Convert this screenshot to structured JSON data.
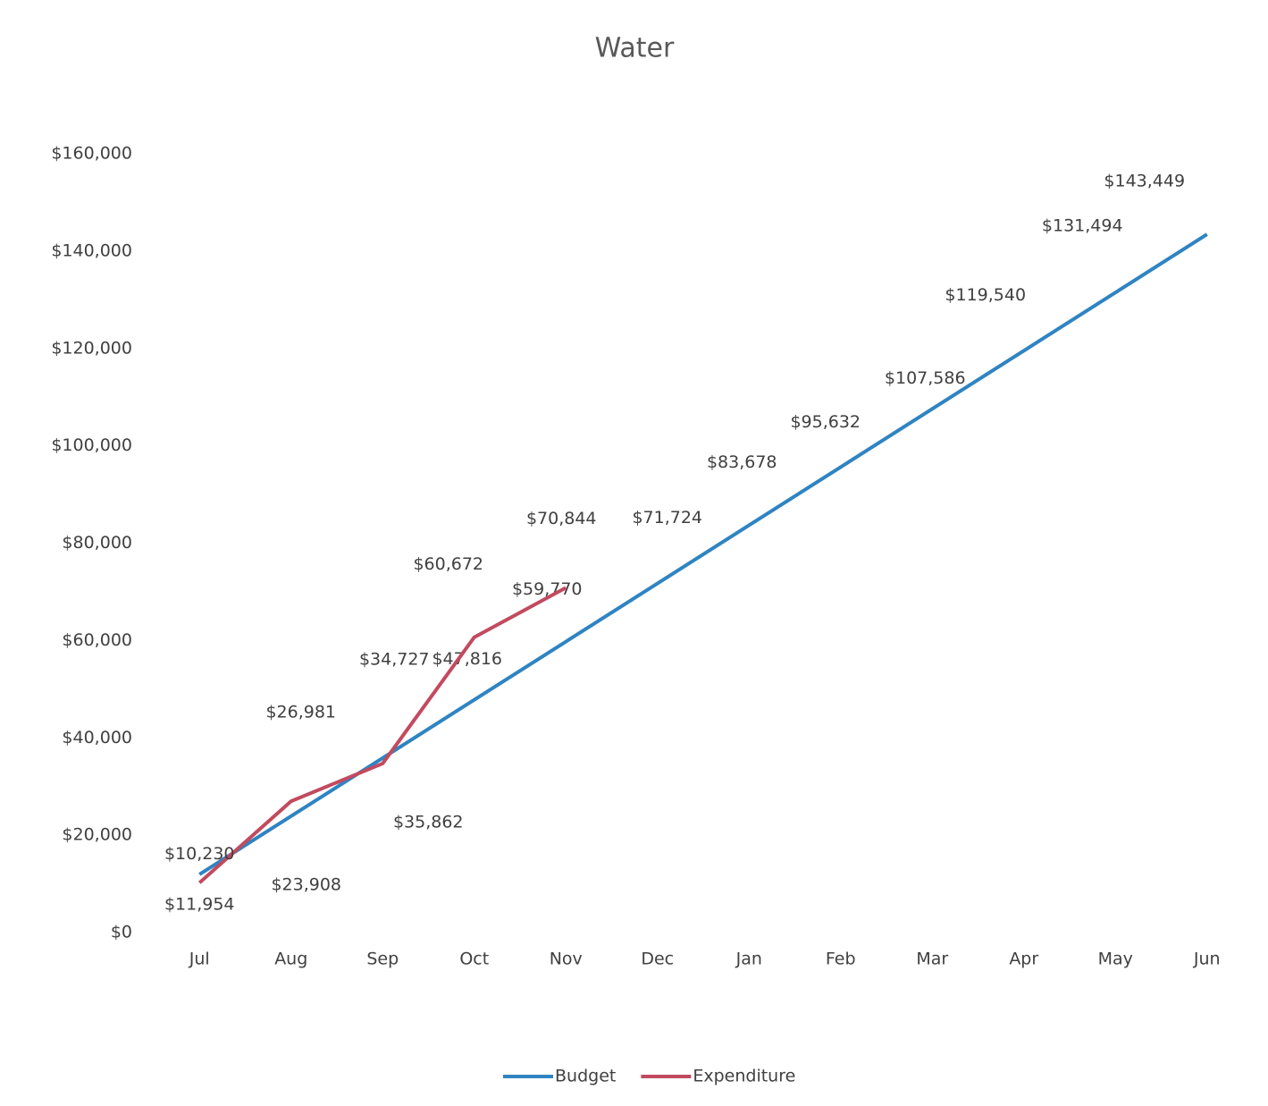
{
  "chart_data": {
    "type": "line",
    "title": "Water",
    "categories": [
      "Jul",
      "Aug",
      "Sep",
      "Oct",
      "Nov",
      "Dec",
      "Jan",
      "Feb",
      "Mar",
      "Apr",
      "May",
      "Jun"
    ],
    "series": [
      {
        "name": "Budget",
        "color": "#2f84c2",
        "values": [
          11954,
          23908,
          35862,
          47816,
          59770,
          71724,
          83678,
          95632,
          107586,
          119540,
          131494,
          143449
        ],
        "value_labels": [
          "$11,954",
          "$23,908",
          "$35,862",
          "$47,816",
          "$59,770",
          "$71,724",
          "$83,678",
          "$95,632",
          "$107,586",
          "$119,540",
          "$131,494",
          "$143,449"
        ]
      },
      {
        "name": "Expenditure",
        "color": "#c24a5f",
        "values": [
          10230,
          26981,
          34727,
          60672,
          70844,
          null,
          null,
          null,
          null,
          null,
          null,
          null
        ],
        "value_labels": [
          "$10,230",
          "$26,981",
          "$34,727",
          "$60,672",
          "$70,844",
          null,
          null,
          null,
          null,
          null,
          null,
          null
        ]
      }
    ],
    "ylim": [
      0,
      160000
    ],
    "yticks": [
      {
        "value": 0,
        "label": "$0"
      },
      {
        "value": 20000,
        "label": "$20,000"
      },
      {
        "value": 40000,
        "label": "$40,000"
      },
      {
        "value": 60000,
        "label": "$60,000"
      },
      {
        "value": 80000,
        "label": "$80,000"
      },
      {
        "value": 100000,
        "label": "$100,000"
      },
      {
        "value": 120000,
        "label": "$120,000"
      },
      {
        "value": 140000,
        "label": "$140,000"
      },
      {
        "value": 160000,
        "label": "$160,000"
      }
    ],
    "legend": "bottom"
  }
}
